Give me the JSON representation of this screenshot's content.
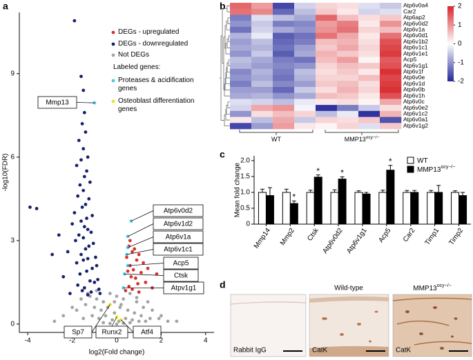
{
  "panel_labels": [
    "a",
    "b",
    "c",
    "d"
  ],
  "chart_data": [
    {
      "type": "scatter",
      "xlabel": "log2(Fold change)",
      "ylabel": "-log10(FDR)",
      "xlim": [
        -4.38,
        4.38
      ],
      "ylim": [
        -0.3,
        11.2
      ],
      "xticks": [
        -4,
        -2,
        0,
        2,
        4
      ],
      "yticks": [
        0,
        3,
        6,
        9
      ],
      "legend_title": "Labeled genes:",
      "series": [
        {
          "name": "Not DEGs",
          "color": "#a3a3a3",
          "x": [
            -2.0,
            -1.6,
            -1.2,
            -0.9,
            -0.6,
            -0.3,
            0.0,
            0.3,
            0.6,
            0.9,
            1.2,
            1.6,
            2.0,
            -2.4,
            -1.8,
            -1.4,
            -1.0,
            -0.7,
            -0.4,
            -0.1,
            0.2,
            0.5,
            0.8,
            1.1,
            1.5,
            1.9,
            2.3,
            -1.5,
            -1.1,
            -0.8,
            -0.5,
            -0.2,
            0.1,
            0.4,
            0.7,
            1.0,
            1.3,
            -0.6,
            -0.3,
            0.0,
            0.3,
            0.6,
            -2.8,
            2.7,
            -0.9,
            0.9,
            -1.3,
            1.4,
            -0.1,
            0.15
          ],
          "y": [
            0.6,
            0.9,
            1.0,
            1.2,
            0.8,
            1.1,
            1.0,
            0.9,
            1.1,
            0.8,
            0.6,
            0.5,
            0.3,
            0.3,
            0.5,
            0.7,
            0.6,
            0.5,
            0.6,
            0.4,
            0.7,
            0.5,
            0.4,
            0.3,
            0.2,
            0.2,
            0.1,
            0.2,
            0.3,
            0.2,
            0.3,
            0.15,
            0.1,
            0.2,
            0.15,
            0.1,
            0.1,
            0.05,
            0.02,
            0.0,
            0.03,
            0.05,
            0.1,
            0.1,
            0.9,
            0.95,
            1.1,
            0.8,
            0.8,
            0.6
          ]
        },
        {
          "name": "DEGs - upregulated",
          "color": "#d9302c",
          "x": [
            0.6,
            0.55,
            0.8,
            0.7,
            1.0,
            0.45,
            0.9,
            1.2,
            0.6,
            1.4,
            0.75,
            0.5,
            1.1,
            1.8,
            0.65,
            0.85,
            2.5,
            2.3,
            1.3,
            0.95,
            0.55,
            1.6,
            0.7,
            0.4,
            1.0
          ],
          "y": [
            3.0,
            2.8,
            2.7,
            2.6,
            2.5,
            2.4,
            2.3,
            2.2,
            2.1,
            2.0,
            1.95,
            1.9,
            1.85,
            1.8,
            1.7,
            1.65,
            1.6,
            1.4,
            1.5,
            1.45,
            1.35,
            1.3,
            1.25,
            1.2,
            1.15
          ]
        },
        {
          "name": "DEGs - downregulated",
          "color": "#16216e",
          "x": [
            -1.9,
            -1.6,
            -1.5,
            -1.45,
            -1.55,
            -1.7,
            -1.4,
            -1.5,
            -1.3,
            -1.6,
            -1.8,
            -1.35,
            -1.45,
            -1.2,
            -1.65,
            -1.5,
            -1.75,
            -1.25,
            -1.4,
            -1.55,
            -1.9,
            -1.1,
            -1.35,
            -1.6,
            -2.0,
            -1.45,
            -1.3,
            -1.15,
            -1.7,
            -1.5,
            -1.85,
            -1.05,
            -1.25,
            -1.4,
            -2.2,
            -1.6,
            -0.95,
            -1.3,
            -1.5,
            -1.8,
            -0.9,
            -1.1,
            -1.35,
            -1.65,
            -2.4,
            -0.85,
            -1.2,
            -1.0,
            -3.9,
            -3.6,
            -2.6,
            -2.9,
            -1.75,
            -1.45,
            -0.8,
            -1.55,
            -1.15,
            -2.1,
            -0.75,
            -1.3
          ],
          "y": [
            10.9,
            8.9,
            8.4,
            7.6,
            7.2,
            6.6,
            6.9,
            6.3,
            6.0,
            5.9,
            5.7,
            5.5,
            5.3,
            5.1,
            5.0,
            4.8,
            4.6,
            4.5,
            4.3,
            4.2,
            4.0,
            3.9,
            3.8,
            3.7,
            3.6,
            3.5,
            3.4,
            3.3,
            3.2,
            3.1,
            3.0,
            2.9,
            2.8,
            2.7,
            2.6,
            2.5,
            2.4,
            2.35,
            2.3,
            2.2,
            2.1,
            2.0,
            1.9,
            1.8,
            1.7,
            1.6,
            1.55,
            1.5,
            4.2,
            4.15,
            3.2,
            2.5,
            1.4,
            1.3,
            1.25,
            1.2,
            1.15,
            1.1,
            1.1,
            1.05
          ]
        },
        {
          "name": "Proteases & acidification genes",
          "color": "#4cc6ea",
          "labels": [
            "Mmp13",
            "Atp6v0d2",
            "Atp6v1d2",
            "Atp6v1a",
            "Atp6v1c1",
            "Acp5",
            "Ctsk",
            "Atpv1g1"
          ],
          "x": [
            -1.0,
            0.65,
            0.5,
            0.5,
            0.45,
            0.5,
            0.35,
            0.3
          ],
          "y": [
            7.95,
            3.7,
            3.15,
            2.75,
            2.5,
            2.1,
            1.8,
            1.3
          ]
        },
        {
          "name": "Osteoblast differentiation genes",
          "color": "#ece21e",
          "labels": [
            "Sp7",
            "Runx2",
            "Atf4"
          ],
          "x": [
            -0.3,
            0.0,
            0.2
          ],
          "y": [
            0.7,
            0.25,
            0.15
          ]
        }
      ]
    },
    {
      "type": "heatmap",
      "rows": [
        "Atp6v0a4",
        "Car2",
        "Atp6ap2",
        "Atp6v0d2",
        "Atp6v1a",
        "Atp6v0d1",
        "Atp6v1b2",
        "Atp6v1c1",
        "Atp6v1e1",
        "Acp5",
        "Atp6v1g1",
        "Atp6v1f",
        "Atp6v0e",
        "Atp6v1d",
        "Atp6v0b",
        "Atp6v1h",
        "Atp6v0c",
        "Atp6v0e2",
        "Atp6v1c2",
        "Atp6v0a1",
        "Atp6v1g2"
      ],
      "groups": [
        {
          "label": "WT"
        },
        {
          "label": "MMP13",
          "superscript": "ocy−/−"
        }
      ],
      "values": [
        [
          1.4,
          0.9,
          -1.7,
          -0.4,
          0.4,
          0.3,
          -0.3,
          -0.5
        ],
        [
          1.3,
          1.1,
          -1.4,
          -0.6,
          0.5,
          0.2,
          -0.4,
          -0.3
        ],
        [
          -1.2,
          -0.3,
          -0.6,
          -0.8,
          1.4,
          0.6,
          0.3,
          0.5
        ],
        [
          -1.0,
          -0.5,
          -1.2,
          -1.1,
          0.9,
          1.2,
          0.2,
          1.0
        ],
        [
          -1.3,
          -0.4,
          -0.8,
          -1.0,
          1.0,
          1.3,
          0.4,
          0.6
        ],
        [
          -0.7,
          -0.2,
          -1.5,
          -1.3,
          1.3,
          0.8,
          0.2,
          1.3
        ],
        [
          -0.9,
          -0.6,
          -1.4,
          -1.2,
          0.6,
          0.7,
          0.3,
          1.6
        ],
        [
          -0.8,
          -0.7,
          -1.3,
          -0.9,
          0.5,
          0.8,
          0.4,
          1.7
        ],
        [
          -1.0,
          -0.5,
          -1.5,
          -0.8,
          0.7,
          0.5,
          0.3,
          1.8
        ],
        [
          -0.6,
          -0.8,
          -1.2,
          -1.3,
          0.6,
          0.9,
          0.1,
          1.5
        ],
        [
          -0.7,
          -0.9,
          -1.1,
          -1.0,
          0.4,
          0.6,
          0.5,
          1.6
        ],
        [
          -1.1,
          -0.7,
          -1.2,
          -0.6,
          0.3,
          0.5,
          0.2,
          1.9
        ],
        [
          -1.0,
          -0.8,
          -1.3,
          -0.7,
          0.4,
          0.4,
          0.6,
          1.7
        ],
        [
          -1.2,
          -0.6,
          -1.1,
          -0.9,
          0.5,
          0.6,
          0.3,
          1.8
        ],
        [
          -0.9,
          -0.9,
          -1.4,
          -0.5,
          0.3,
          0.7,
          0.4,
          1.9
        ],
        [
          -0.8,
          -0.7,
          -1.0,
          -0.8,
          0.6,
          0.5,
          0.2,
          1.6
        ],
        [
          -0.3,
          -0.4,
          -0.6,
          -0.2,
          0.2,
          0.3,
          0.1,
          0.8
        ],
        [
          -0.4,
          0.8,
          1.0,
          -0.1,
          -1.9,
          -1.2,
          -0.5,
          0.3
        ],
        [
          -1.0,
          0.3,
          0.6,
          0.4,
          -0.6,
          -0.2,
          -1.9,
          0.7
        ],
        [
          0.2,
          -0.6,
          0.8,
          -0.5,
          0.4,
          0.3,
          0.5,
          -1.6
        ],
        [
          -1.7,
          -0.9,
          0.9,
          0.2,
          0.1,
          0.4,
          -0.3,
          0.5
        ]
      ],
      "zlim": [
        -2,
        2
      ],
      "colorbar_ticks": [
        2,
        1,
        0,
        -1,
        -2
      ],
      "colors": {
        "low": "#23289a",
        "mid": "#ffffff",
        "high": "#d7262b"
      }
    },
    {
      "type": "bar",
      "ylabel": "Mean fold change",
      "categories": [
        "Mmp14",
        "Mmp2",
        "Ctsk",
        "Atp6v0d2",
        "Atp6v1g1",
        "Acp5",
        "Car2",
        "Timp1",
        "Timp2"
      ],
      "ylim": [
        0,
        2.15
      ],
      "yticks": [
        0,
        0.5,
        {
          "value": 1,
          "label": "1.0"
        },
        1.5,
        {
          "value": 2,
          "label": "2.0"
        }
      ],
      "edgecolor": "#000000",
      "series": [
        {
          "name": "WT",
          "color": "#ffffff",
          "values": [
            1.0,
            1.0,
            1.0,
            1.0,
            1.0,
            1.0,
            1.0,
            1.0,
            1.0
          ],
          "errors": [
            0.1,
            0.1,
            0.07,
            0.08,
            0.05,
            0.07,
            0.06,
            0.06,
            0.05
          ]
        },
        {
          "name": "MMP13",
          "name_superscript": "ocy−/−",
          "color": "#000000",
          "values": [
            0.9,
            0.65,
            1.48,
            1.42,
            0.95,
            1.7,
            1.0,
            1.0,
            0.9
          ],
          "errors": [
            0.25,
            0.08,
            0.07,
            0.07,
            0.05,
            0.15,
            0.06,
            0.22,
            0.1
          ],
          "significance": [
            null,
            "*",
            "*",
            "*",
            null,
            "*",
            null,
            null,
            null
          ]
        }
      ]
    }
  ],
  "panel_d": {
    "titles": [
      "Wild-type",
      "MMP13"
    ],
    "title_superscript": "ocy−/−",
    "image_labels": [
      "Rabbit IgG",
      "CatK",
      "CatK"
    ]
  }
}
